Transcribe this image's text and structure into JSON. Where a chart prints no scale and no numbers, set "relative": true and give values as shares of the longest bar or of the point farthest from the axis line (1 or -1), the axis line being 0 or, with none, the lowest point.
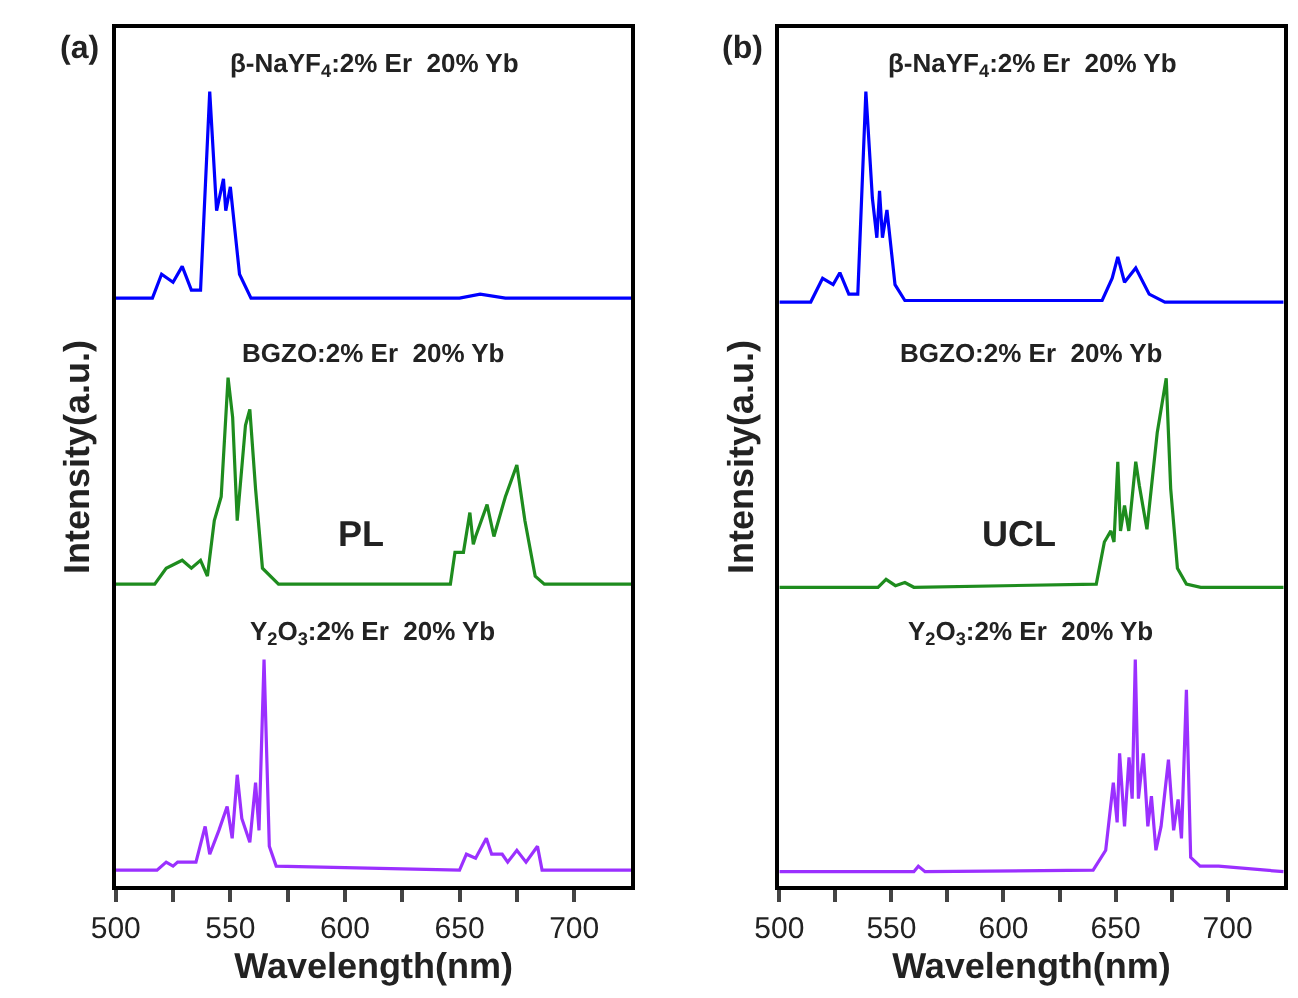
{
  "chart_data": [
    {
      "type": "line",
      "relative": true,
      "xlabel": "Wavelength(nm)",
      "ylabel": "Intensity(a.u.)",
      "annotations": [
        "(a)",
        "PL"
      ],
      "xlim": [
        500,
        725
      ],
      "xticks": [
        500,
        {
          "value": 525,
          "label": null
        },
        550,
        {
          "value": 575,
          "label": null
        },
        600,
        {
          "value": 625,
          "label": null
        },
        650,
        {
          "value": 675,
          "label": null
        },
        700
      ],
      "legend": false,
      "marker": "none",
      "line_style": "solid",
      "series": [
        {
          "name": "β-NaYF$_{4}$:2% Er  20% Yb",
          "color": "#0000ff",
          "x": [
            500,
            516,
            520,
            525,
            529,
            533,
            537,
            541,
            544,
            547,
            548,
            550,
            554,
            559,
            600,
            650,
            659,
            670,
            725
          ],
          "values": [
            0.74,
            0.74,
            0.77,
            0.76,
            0.78,
            0.75,
            0.75,
            1.0,
            0.85,
            0.89,
            0.85,
            0.88,
            0.77,
            0.74,
            0.74,
            0.74,
            0.745,
            0.74,
            0.74
          ]
        },
        {
          "name": "BGZO:2% Er  20% Yb",
          "color": "#1e8c1e",
          "x": [
            500,
            517,
            522,
            529,
            533,
            537,
            540,
            543,
            546,
            549,
            551,
            553,
            556.6,
            558.5,
            561,
            564,
            571,
            646,
            648,
            651.7,
            654.5,
            656,
            657,
            662,
            665,
            670,
            675,
            678.5,
            683,
            687,
            725
          ],
          "values": [
            0.38,
            0.38,
            0.4,
            0.41,
            0.4,
            0.41,
            0.39,
            0.46,
            0.49,
            0.64,
            0.59,
            0.46,
            0.58,
            0.6,
            0.5,
            0.4,
            0.38,
            0.38,
            0.42,
            0.42,
            0.47,
            0.43,
            0.44,
            0.48,
            0.44,
            0.49,
            0.53,
            0.46,
            0.39,
            0.38,
            0.38
          ]
        },
        {
          "name": "Y$_{2}$O$_{3}$:2% Er  20% Yb",
          "color": "#9b30ff",
          "x": [
            500,
            518,
            522,
            525,
            527,
            535,
            539,
            541,
            545,
            548.6,
            550.8,
            553,
            555,
            558.5,
            561,
            562.5,
            564.7,
            567,
            570,
            650,
            653,
            657,
            661.7,
            664,
            668.6,
            671,
            675,
            679,
            684,
            686,
            725
          ],
          "values": [
            0.02,
            0.02,
            0.03,
            0.025,
            0.03,
            0.03,
            0.075,
            0.04,
            0.07,
            0.1,
            0.06,
            0.14,
            0.085,
            0.055,
            0.13,
            0.07,
            0.285,
            0.05,
            0.025,
            0.02,
            0.04,
            0.035,
            0.06,
            0.04,
            0.04,
            0.03,
            0.045,
            0.03,
            0.05,
            0.02,
            0.02
          ]
        }
      ]
    },
    {
      "type": "line",
      "relative": true,
      "xlabel": "Wavelength(nm)",
      "ylabel": "Intensity(a.u.)",
      "annotations": [
        "(b)",
        "UCL"
      ],
      "xlim": [
        500,
        725
      ],
      "xticks": [
        500,
        {
          "value": 525,
          "label": null
        },
        550,
        {
          "value": 575,
          "label": null
        },
        600,
        {
          "value": 625,
          "label": null
        },
        650,
        {
          "value": 675,
          "label": null
        },
        700
      ],
      "legend": false,
      "marker": "none",
      "line_style": "solid",
      "series": [
        {
          "name": "β-NaYF$_{4}$:2% Er  20% Yb",
          "color": "#0000ff",
          "x": [
            500,
            514,
            519.3,
            524,
            527,
            531,
            535,
            538.6,
            541.5,
            543.5,
            544.7,
            546,
            548,
            551.6,
            556,
            644,
            648.5,
            651,
            654,
            659,
            665,
            672,
            725
          ],
          "values": [
            0.735,
            0.735,
            0.765,
            0.757,
            0.772,
            0.745,
            0.745,
            1.0,
            0.866,
            0.816,
            0.875,
            0.816,
            0.851,
            0.757,
            0.737,
            0.737,
            0.765,
            0.792,
            0.76,
            0.778,
            0.745,
            0.735,
            0.735
          ]
        },
        {
          "name": "BGZO:2% Er  20% Yb",
          "color": "#1e8c1e",
          "x": [
            500,
            544,
            547.6,
            551.8,
            556,
            560,
            641.4,
            645,
            647.9,
            649.3,
            651,
            652.2,
            654,
            655.9,
            659,
            660.6,
            664,
            668.6,
            672.6,
            674.6,
            677.6,
            681.6,
            688,
            725
          ],
          "values": [
            0.376,
            0.376,
            0.386,
            0.378,
            0.382,
            0.376,
            0.38,
            0.433,
            0.447,
            0.433,
            0.534,
            0.447,
            0.479,
            0.447,
            0.534,
            0.504,
            0.449,
            0.571,
            0.639,
            0.5,
            0.4,
            0.38,
            0.376,
            0.376
          ]
        },
        {
          "name": "Y$_{2}$O$_{3}$:2% Er  20% Yb",
          "color": "#9b30ff",
          "x": [
            500,
            560,
            562,
            565,
            640,
            645.6,
            649,
            650.7,
            651.8,
            654,
            656,
            657.4,
            658.8,
            660.2,
            662.4,
            664.4,
            666,
            668,
            670.3,
            673.6,
            675.9,
            677.9,
            679.4,
            681.6,
            683.5,
            687.7,
            696,
            725
          ],
          "values": [
            0.018,
            0.018,
            0.025,
            0.018,
            0.02,
            0.045,
            0.13,
            0.08,
            0.167,
            0.075,
            0.162,
            0.11,
            0.285,
            0.11,
            0.167,
            0.075,
            0.113,
            0.045,
            0.075,
            0.159,
            0.07,
            0.109,
            0.06,
            0.247,
            0.036,
            0.025,
            0.025,
            0.018
          ]
        }
      ]
    }
  ]
}
